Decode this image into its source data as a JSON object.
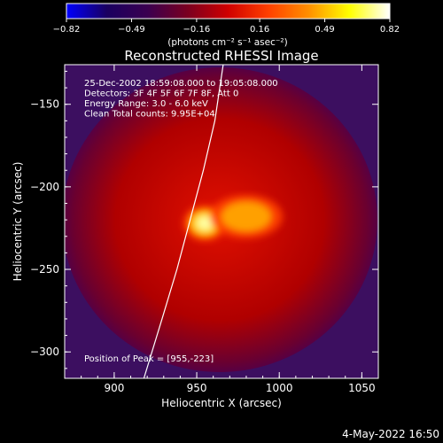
{
  "chart_data": {
    "type": "heatmap",
    "title": "Reconstructed RHESSI Image",
    "xlabel": "Heliocentric X (arcsec)",
    "ylabel": "Heliocentric Y (arcsec)",
    "xlim": [
      870,
      1060
    ],
    "ylim": [
      -316,
      -126
    ],
    "x_ticks": [
      900,
      950,
      1000,
      1050
    ],
    "y_ticks": [
      -150,
      -200,
      -250,
      -300
    ],
    "colorbar": {
      "range": [
        -0.82,
        0.82
      ],
      "tick_values": [
        -0.82,
        -0.49,
        -0.16,
        0.16,
        0.49,
        0.82
      ],
      "tick_labels": [
        "−0.82",
        "−0.49",
        "−0.16",
        "0.16",
        "0.49",
        "0.82"
      ],
      "units_label": "(photons cm⁻² s⁻¹ asec⁻²)",
      "colors": [
        "#0000ff",
        "#1a0060",
        "#3a0050",
        "#7a0020",
        "#d00000",
        "#ff4000",
        "#ff9000",
        "#ffff00",
        "#ffffff"
      ]
    },
    "annotations": [
      "25-Dec-2002 18:59:08.000 to 19:05:08.000",
      "Detectors: 3F 4F 5F 6F 7F 8F, Att 0",
      "Energy Range: 3.0 - 6.0 keV",
      "Clean    Total counts: 9.95E+04"
    ],
    "peak": {
      "x": 955,
      "y": -223,
      "label": "Position of Peak = [955,-223]"
    },
    "limb_curve": [
      [
        918,
        -316
      ],
      [
        929,
        -280
      ],
      [
        938,
        -250
      ],
      [
        946,
        -220
      ],
      [
        954,
        -190
      ],
      [
        961,
        -160
      ],
      [
        966,
        -126
      ]
    ],
    "sources": [
      {
        "x": 955,
        "y": -222,
        "sx": 6,
        "sy": 5,
        "amp": 0.7
      },
      {
        "x": 980,
        "y": -218,
        "sx": 10,
        "sy": 6,
        "amp": 0.3
      }
    ]
  },
  "footer": {
    "date": "4-May-2022 16:50"
  }
}
